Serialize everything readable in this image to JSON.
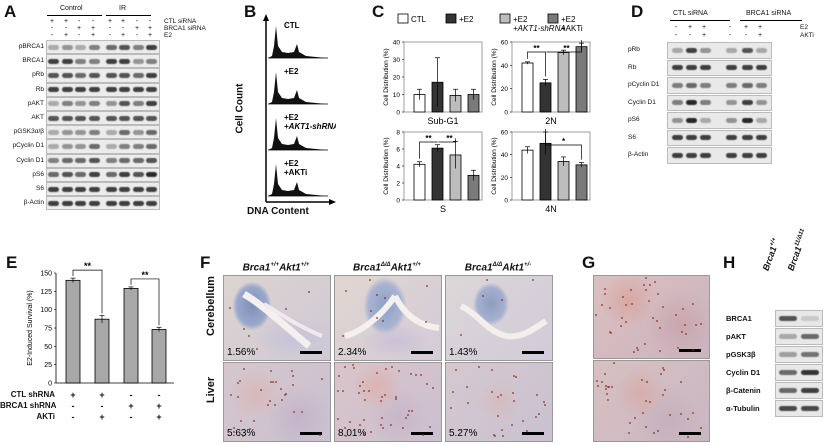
{
  "panels": {
    "A": {
      "label": "A",
      "groups": [
        "Control",
        "IR"
      ],
      "conditions": [
        {
          "name": "CTL siRNA",
          "signs": [
            "+",
            "+",
            "-",
            "-",
            "+",
            "+",
            "-",
            "-"
          ]
        },
        {
          "name": "BRCA1 siRNA",
          "signs": [
            "-",
            "-",
            "+",
            "+",
            "-",
            "-",
            "+",
            "+"
          ]
        },
        {
          "name": "E2",
          "signs": [
            "-",
            "+",
            "-",
            "+",
            "-",
            "+",
            "-",
            "+"
          ]
        }
      ],
      "rows": [
        "pBRCA1",
        "BRCA1",
        "pRb",
        "Rb",
        "pAKT",
        "AKT",
        "pGSK3α/β",
        "pCyclin D1",
        "Cyclin D1",
        "pS6",
        "S6",
        "β-Actin"
      ]
    },
    "B": {
      "label": "B",
      "ylabel": "Cell Count",
      "xlabel": "DNA Content",
      "histograms": [
        "CTL",
        "+E2",
        "+E2\n+AKT1-shRNA",
        "+E2\n+AKTi"
      ],
      "hist_lines": [
        [
          "CTL"
        ],
        [
          "+E2"
        ],
        [
          "+E2",
          "+AKT1-shRNA"
        ],
        [
          "+E2",
          "+AKTi"
        ]
      ]
    },
    "C": {
      "label": "C",
      "legend": [
        "CTL",
        "+E2",
        "+E2\n+AKT1-shRNA",
        "+E2\n+AKTi"
      ],
      "legend_lines": [
        [
          "CTL"
        ],
        [
          "+E2"
        ],
        [
          "+E2",
          "+AKT1-shRNA"
        ],
        [
          "+E2",
          "+AKTi"
        ]
      ],
      "colors": [
        "#ffffff",
        "#333333",
        "#bdbdbd",
        "#7a7a7a"
      ],
      "ylabel": "Cell Distribution (%)",
      "subplots": [
        {
          "title": "Sub-G1",
          "ylim": [
            0,
            40
          ],
          "ticks": [
            0,
            10,
            20,
            30,
            40
          ],
          "values": [
            10,
            17,
            9.5,
            10
          ],
          "errors": [
            3,
            14,
            3.5,
            3
          ]
        },
        {
          "title": "2N",
          "ylim": [
            0,
            60
          ],
          "ticks": [
            0,
            20,
            40,
            60
          ],
          "values": [
            42,
            25,
            51,
            56
          ],
          "errors": [
            1,
            3,
            2,
            3
          ],
          "sig": [
            "**",
            "**"
          ]
        },
        {
          "title": "S",
          "ylim": [
            0,
            8
          ],
          "ticks": [
            0,
            2,
            4,
            6,
            8
          ],
          "values": [
            4.2,
            6.1,
            5.3,
            2.9
          ],
          "errors": [
            0.3,
            0.4,
            1.6,
            0.6
          ],
          "sig": [
            "**",
            "**"
          ]
        },
        {
          "title": "4N",
          "ylim": [
            0,
            60
          ],
          "ticks": [
            0,
            20,
            40,
            60
          ],
          "values": [
            44,
            50,
            34,
            31
          ],
          "errors": [
            3,
            10,
            4,
            2
          ],
          "sig": [
            "*"
          ]
        }
      ]
    },
    "D": {
      "label": "D",
      "groups": [
        "CTL siRNA",
        "BRCA1 siRNA"
      ],
      "conditions": [
        {
          "name": "E2",
          "signs": [
            "-",
            "+",
            "+",
            "-",
            "+",
            "+"
          ]
        },
        {
          "name": "AKTi",
          "signs": [
            "-",
            "-",
            "+",
            "-",
            "-",
            "+"
          ]
        }
      ],
      "rows": [
        "pRb",
        "Rb",
        "pCyclin D1",
        "Cyclin D1",
        "pS6",
        "S6",
        "β-Actin"
      ]
    },
    "E": {
      "label": "E",
      "chart_data": {
        "type": "bar",
        "ylabel": "E2-Induced Survival (%)",
        "ylim": [
          0,
          150
        ],
        "ticks": [
          0,
          25,
          50,
          75,
          100,
          125,
          150
        ],
        "values": [
          140,
          87,
          129,
          73
        ],
        "errors": [
          3,
          5,
          2,
          3
        ],
        "sig": [
          "**",
          "**"
        ],
        "conditions": [
          {
            "name": "CTL shRNA",
            "signs": [
              "+",
              "+",
              "-",
              "-"
            ]
          },
          {
            "name": "BRCA1 shRNA",
            "signs": [
              "-",
              "-",
              "+",
              "+"
            ]
          },
          {
            "name": "AKTi",
            "signs": [
              "-",
              "+",
              "-",
              "+"
            ]
          }
        ]
      }
    },
    "F": {
      "label": "F",
      "columns": [
        {
          "gene1": "Brca1",
          "sup1": "+/+",
          "gene2": "Akt1",
          "sup2": "+/+"
        },
        {
          "gene1": "Brca1",
          "sup1": "Δ/Δ",
          "gene2": "Akt1",
          "sup2": "+/+"
        },
        {
          "gene1": "Brca1",
          "sup1": "Δ/Δ",
          "gene2": "Akt1",
          "sup2": "+/-"
        }
      ],
      "rows": [
        "Cerebellum",
        "Liver"
      ],
      "percents": [
        [
          "1.56%",
          "2.34%",
          "1.43%"
        ],
        [
          "5.63%",
          "8.01%",
          "5.27%"
        ]
      ]
    },
    "G": {
      "label": "G"
    },
    "H": {
      "label": "H",
      "columns": [
        {
          "gene": "Brca1",
          "sup": "+/+"
        },
        {
          "gene": "Brca1",
          "sup": "11/Δ11"
        }
      ],
      "rows": [
        "BRCA1",
        "pAKT",
        "pGSK3β",
        "Cyclin D1",
        "β-Catenin",
        "α-Tubulin"
      ]
    }
  }
}
